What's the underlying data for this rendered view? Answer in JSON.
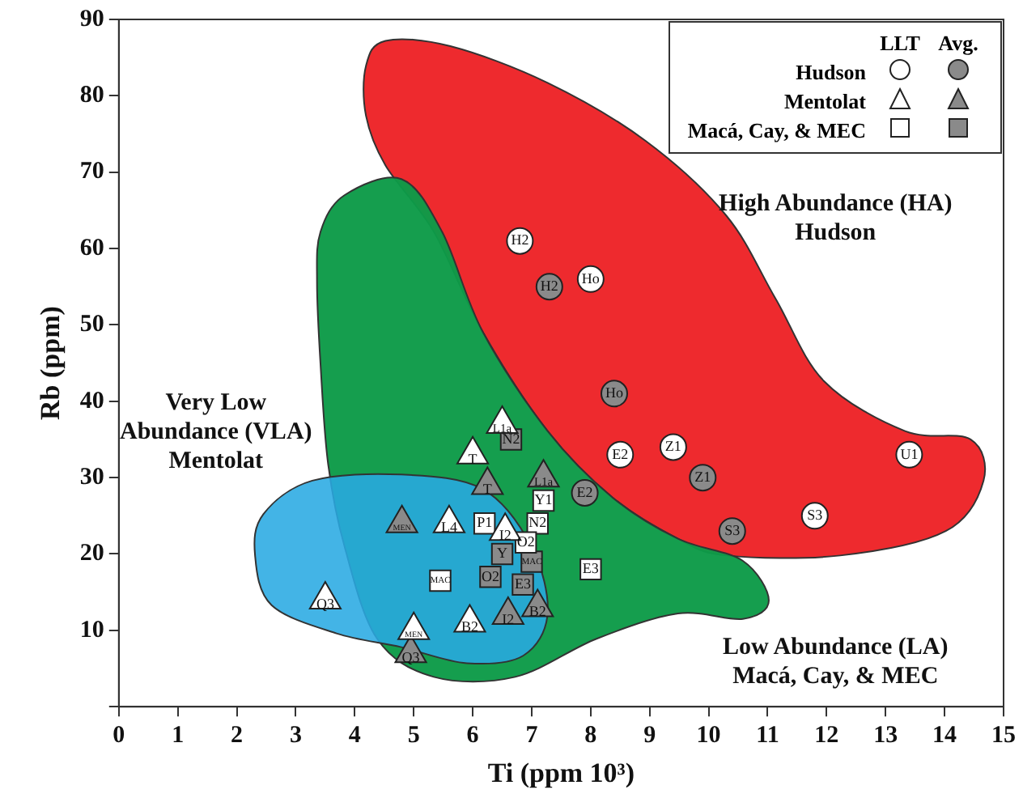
{
  "chart_data": {
    "type": "scatter",
    "xlabel": "Ti (ppm 10³)",
    "ylabel": "Rb (ppm)",
    "xlim": [
      0,
      15
    ],
    "xticks": [
      0,
      1,
      2,
      3,
      4,
      5,
      6,
      7,
      8,
      9,
      10,
      11,
      12,
      13,
      14,
      15
    ],
    "ylim": [
      0,
      90
    ],
    "yticks": [
      {
        "value": 0,
        "label": null
      },
      10,
      20,
      30,
      40,
      50,
      60,
      70,
      80,
      90
    ],
    "grid": false,
    "legend": "top right",
    "annotations": [
      "LLT",
      "Avg.",
      "High Abundance (HA)\nHudson",
      "Very Low\nAbundance (VLA)\nMentolat",
      "Low Abundance (LA)\nMacá, Cay, & MEC"
    ],
    "series": [
      {
        "name": "Hudson",
        "color": "#ffffff",
        "marker": "circle",
        "x": [
          6.8,
          8.0,
          8.5,
          9.4,
          11.8,
          13.4
        ],
        "values": [
          61,
          56,
          33,
          34,
          25,
          33
        ],
        "value_labels": [
          "H2",
          "Ho",
          "E2",
          "Z1",
          "S3",
          "U1"
        ]
      },
      {
        "color": "#8a8a8a",
        "marker": "circle",
        "x": [
          7.3,
          8.4,
          7.9,
          9.9,
          10.4
        ],
        "values": [
          55,
          41,
          28,
          30,
          23
        ],
        "value_labels": [
          "H2",
          "Ho",
          "E2",
          "Z1",
          "S3"
        ]
      },
      {
        "name": "Mentolat",
        "color": "#ffffff",
        "marker": "triangle",
        "x": [
          6.5,
          6.0,
          5.6,
          6.55,
          3.5,
          5.0,
          5.95
        ],
        "values": [
          37,
          33,
          24,
          23,
          14,
          10,
          11
        ],
        "value_labels": [
          "L1a",
          "T",
          "L4",
          "I2",
          "Q3",
          "MEN",
          "B2"
        ]
      },
      {
        "color": "#8a8a8a",
        "marker": "triangle",
        "x": [
          7.2,
          6.25,
          4.8,
          4.95,
          6.6,
          7.1
        ],
        "values": [
          30,
          29,
          24,
          7,
          12,
          13
        ],
        "value_labels": [
          "L1a",
          "T",
          "MEN",
          "Q3",
          "I2",
          "B2"
        ]
      },
      {
        "name": "Macá, Cay, & MEC",
        "color": "#ffffff",
        "marker": "square",
        "x": [
          6.2,
          7.2,
          7.1,
          6.9,
          5.45,
          8.0
        ],
        "values": [
          24,
          27,
          24,
          21.5,
          16.5,
          18
        ],
        "value_labels": [
          "P1",
          "Y1",
          "N2",
          "O2",
          "MAC",
          "E3"
        ]
      },
      {
        "color": "#8a8a8a",
        "marker": "square",
        "x": [
          6.65,
          6.5,
          7.0,
          6.3,
          6.85
        ],
        "values": [
          35,
          20,
          19,
          17,
          16
        ],
        "value_labels": [
          "N2",
          "Y",
          "MAC",
          "O2",
          "E3"
        ]
      }
    ]
  }
}
